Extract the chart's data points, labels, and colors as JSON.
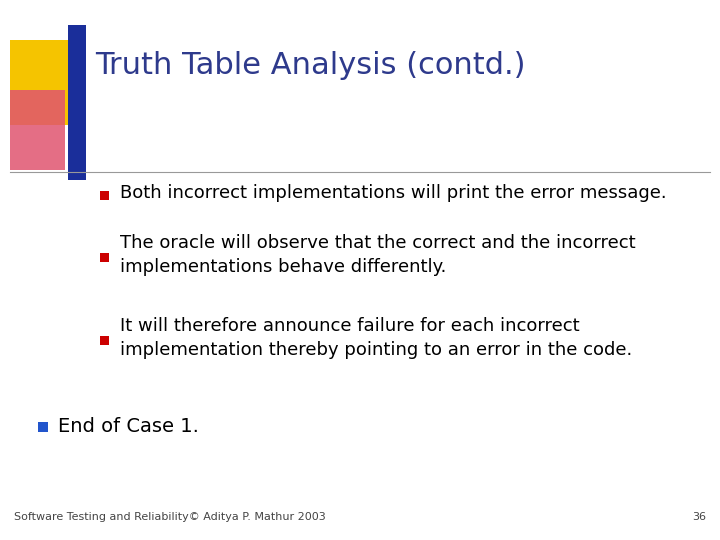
{
  "title": "Truth Table Analysis (contd.)",
  "title_color": "#2E3A8C",
  "background_color": "#FFFFFF",
  "bullets_inner": [
    "Both incorrect implementations will print the error message.",
    "The oracle will observe that the correct and the incorrect\nimplementations behave differently.",
    "It will therefore announce failure for each incorrect\nimplementation thereby pointing to an error in the code."
  ],
  "bullet_outer": "End of Case 1.",
  "inner_bullet_color": "#CC0000",
  "outer_bullet_color": "#2255CC",
  "bullet_text_color": "#000000",
  "footer_text": "Software Testing and Reliability© Aditya P. Mathur 2003",
  "footer_page": "36",
  "footer_color": "#444444",
  "separator_line_color": "#999999",
  "title_fontsize": 22,
  "body_fontsize": 13,
  "outer_fontsize": 14,
  "footer_fontsize": 8
}
